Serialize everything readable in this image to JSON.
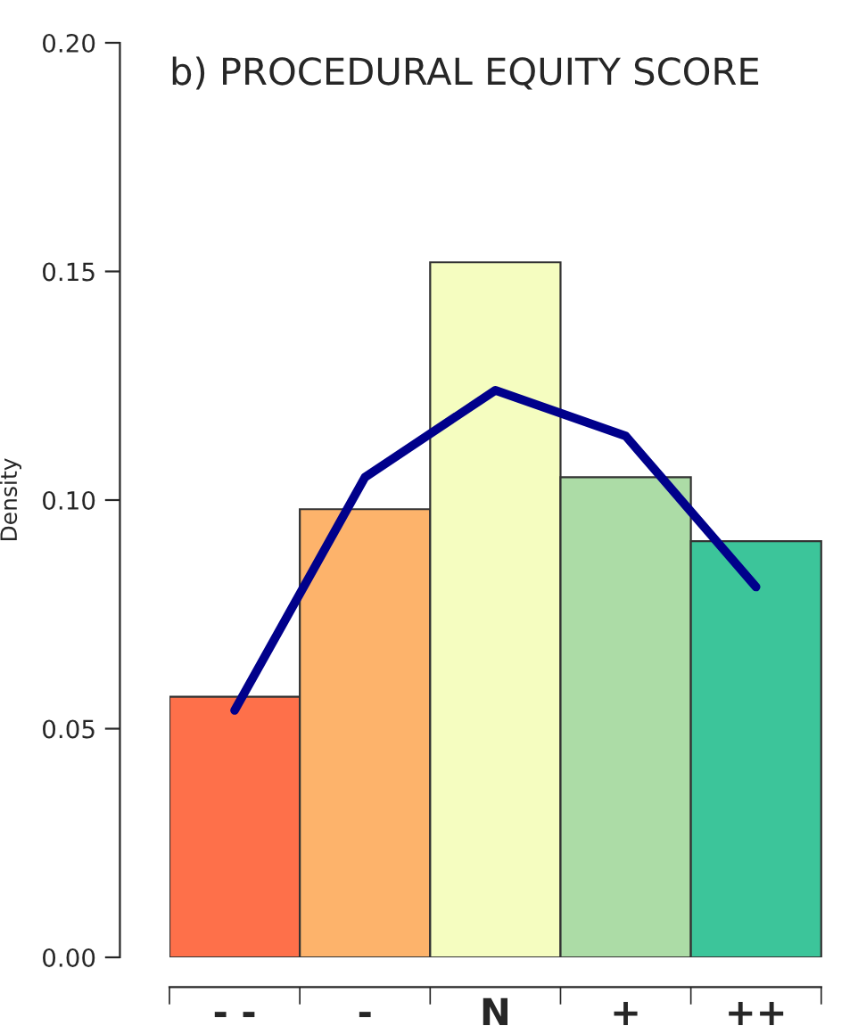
{
  "chart_data": {
    "type": "bar",
    "title": "b) PROCEDURAL EQUITY SCORE",
    "ylabel": "Density",
    "categories": [
      "- -",
      "-",
      "N",
      "+",
      "++"
    ],
    "series": [
      {
        "values": [
          0.057,
          0.098,
          0.152,
          0.105,
          0.091
        ],
        "colors": [
          "#fe704a",
          "#fdb36b",
          "#f5fdc0",
          "#acdca6",
          "#3cc59a"
        ]
      },
      {
        "type": "line",
        "color": "#00008b",
        "values": [
          0.054,
          0.105,
          0.124,
          0.114,
          0.081
        ]
      }
    ],
    "ylim": [
      0,
      0.2
    ],
    "yticks": [
      {
        "value": 0,
        "label": "0.00"
      },
      {
        "value": 0.05,
        "label": "0.05"
      },
      {
        "value": 0.1,
        "label": "0.10"
      },
      {
        "value": 0.15,
        "label": "0.15"
      },
      {
        "value": 0.2,
        "label": "0.20"
      }
    ],
    "grid": false
  }
}
